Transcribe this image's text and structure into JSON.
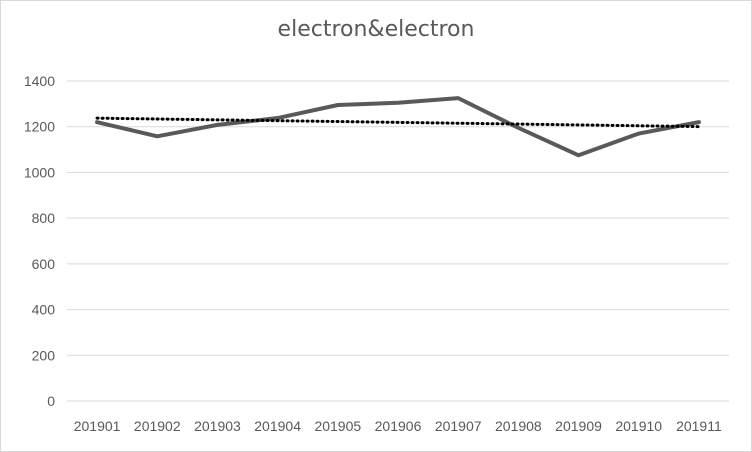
{
  "chart_data": {
    "type": "line",
    "title": "electron&electron",
    "xlabel": "",
    "ylabel": "",
    "categories": [
      "201901",
      "201902",
      "201903",
      "201904",
      "201905",
      "201906",
      "201907",
      "201908",
      "201909",
      "201910",
      "201911"
    ],
    "series": [
      {
        "values": [
          1220,
          1158,
          1208,
          1238,
          1295,
          1305,
          1325,
          1195,
          1075,
          1170,
          1220
        ],
        "color": "#595959"
      }
    ],
    "trendline": {
      "type": "linear",
      "color": "#000000",
      "style": "dotted"
    },
    "ylim": [
      0,
      1400
    ],
    "yticks": [
      0,
      200,
      400,
      600,
      800,
      1000,
      1200,
      1400
    ],
    "grid": true,
    "legend": "none"
  }
}
